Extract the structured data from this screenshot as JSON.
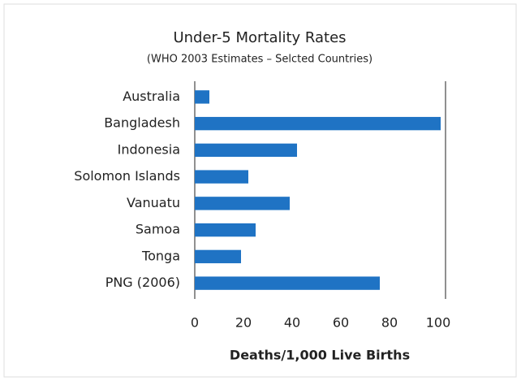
{
  "chart_data": {
    "type": "bar",
    "orientation": "horizontal",
    "title": "Under-5 Mortality Rates",
    "subtitle": "(WHO 2003 Estimates – Selcted Countries)",
    "x_label": "Deaths/1,000 Live Births",
    "categories": [
      "Australia",
      "Bangladesh",
      "Indonesia",
      "Solomon Islands",
      "Vanuatu",
      "Samoa",
      "Tonga",
      "PNG (2006)"
    ],
    "values": [
      6,
      101,
      42,
      22,
      39,
      25,
      19,
      76
    ],
    "color": "#1f73c4",
    "xlim": [
      0,
      103
    ],
    "xticks": [
      0,
      20,
      40,
      60,
      80,
      100
    ],
    "grid": false
  }
}
